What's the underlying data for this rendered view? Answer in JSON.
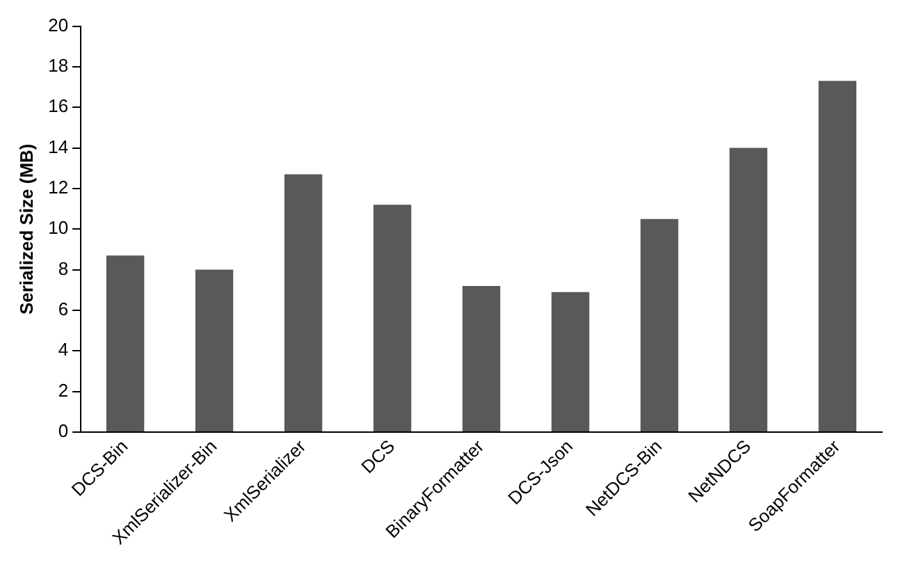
{
  "chart_data": {
    "type": "bar",
    "ylabel": "Serialized Size (MB)",
    "categories": [
      "DCS-Bin",
      "XmlSerializer-Bin",
      "XmlSerializer",
      "DCS",
      "BinaryFormatter",
      "DCS-Json",
      "NetDCS-Bin",
      "NetNDCS",
      "SoapFormatter"
    ],
    "values": [
      8.7,
      8.0,
      12.7,
      11.2,
      7.2,
      6.9,
      10.5,
      14.0,
      17.3
    ],
    "color": "#595959",
    "ylim": [
      0,
      20
    ],
    "yticks": [
      0,
      2,
      4,
      6,
      8,
      10,
      12,
      14,
      16,
      18,
      20
    ],
    "grid": false,
    "legend": false
  }
}
